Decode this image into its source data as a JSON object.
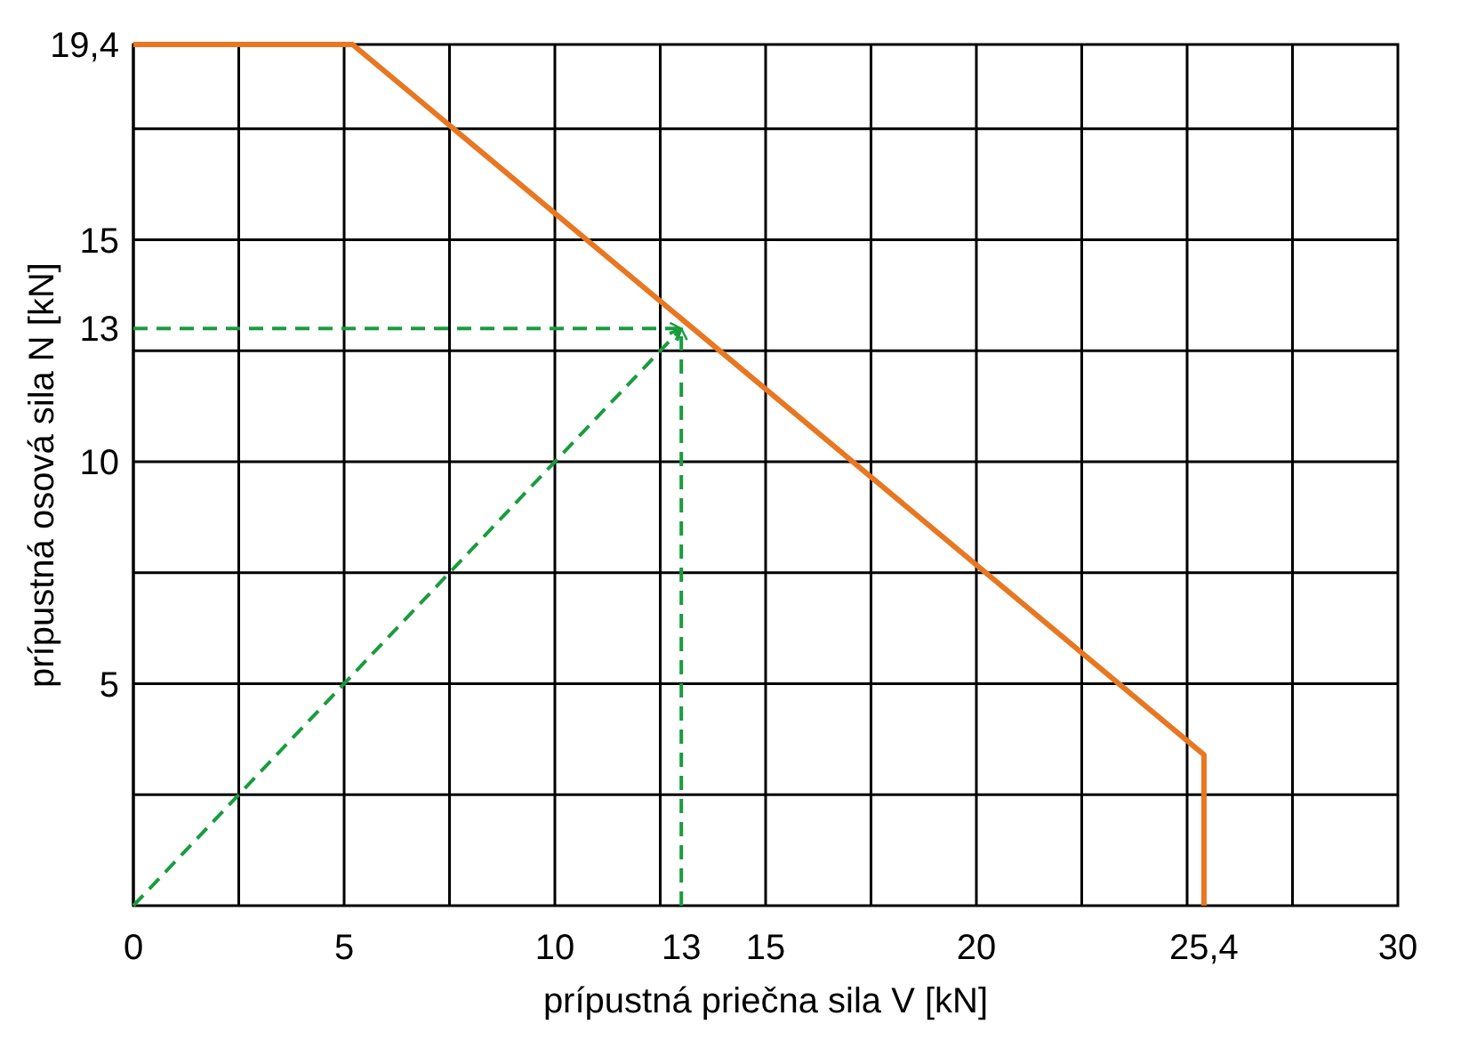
{
  "chart_data": {
    "type": "line",
    "xlabel": "prípustná priečna sila V [kN]",
    "ylabel": "prípustná osová sila N [kN]",
    "xlim": [
      0,
      30
    ],
    "ylim": [
      0,
      19.4
    ],
    "xticks": [
      0,
      {
        "value": 2.5,
        "label": null
      },
      5,
      {
        "value": 7.5,
        "label": null
      },
      10,
      {
        "value": 12.5,
        "label": null
      },
      {
        "value": 13,
        "label": "13"
      },
      15,
      {
        "value": 17.5,
        "label": null
      },
      20,
      {
        "value": 22.5,
        "label": null
      },
      {
        "value": 25,
        "label": null
      },
      {
        "value": 25.4,
        "label": "25,4"
      },
      {
        "value": 27.5,
        "label": null
      },
      {
        "value": 30,
        "label": "30"
      }
    ],
    "yticks": [
      {
        "value": 2.5,
        "label": null
      },
      5,
      {
        "value": 7.5,
        "label": null
      },
      10,
      {
        "value": 12.5,
        "label": null
      },
      {
        "value": 13,
        "label": "13"
      },
      15,
      {
        "value": 17.5,
        "label": null
      },
      {
        "value": 19.4,
        "label": "19,4"
      }
    ],
    "grid": true,
    "series": [
      {
        "color": "#e87722",
        "line_style": "solid",
        "x": [
          0,
          5.2,
          25.4,
          25.4
        ],
        "values": [
          19.4,
          19.4,
          3.4,
          0
        ]
      },
      {
        "color": "#1a9c3e",
        "line_style": "dashed",
        "x": [
          0,
          13
        ],
        "values": [
          0,
          13
        ]
      },
      {
        "color": "#1a9c3e",
        "line_style": "dashed",
        "x": [
          0,
          13
        ],
        "values": [
          13,
          13
        ]
      },
      {
        "color": "#1a9c3e",
        "line_style": "dashed",
        "x": [
          13,
          13
        ],
        "values": [
          0,
          13
        ]
      }
    ]
  }
}
